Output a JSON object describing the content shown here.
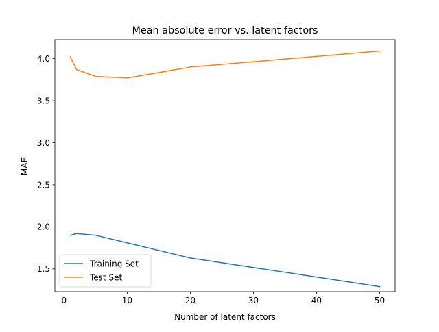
{
  "chart_data": {
    "type": "line",
    "title": "Mean absolute error vs. latent factors",
    "xlabel": "Number of latent factors",
    "ylabel": "MAE",
    "x": [
      1,
      2,
      5,
      10,
      20,
      50
    ],
    "series": [
      {
        "name": "Training Set",
        "color": "#1f77b4",
        "values": [
          1.9,
          1.92,
          1.9,
          1.81,
          1.63,
          1.29
        ]
      },
      {
        "name": "Test Set",
        "color": "#ff7f0e",
        "values": [
          4.02,
          3.87,
          3.79,
          3.77,
          3.9,
          4.09
        ]
      }
    ],
    "xlim": [
      -1.45,
      52.45
    ],
    "ylim": [
      1.23,
      4.225
    ],
    "xticks": [
      0,
      10,
      20,
      30,
      40,
      50
    ],
    "xtick_labels": [
      "0",
      "10",
      "20",
      "30",
      "40",
      "50"
    ],
    "yticks": [
      1.5,
      2.0,
      2.5,
      3.0,
      3.5,
      4.0
    ],
    "ytick_labels": [
      "1.5",
      "2.0",
      "2.5",
      "3.0",
      "3.5",
      "4.0"
    ],
    "grid": false,
    "legend_position": "lower-left"
  }
}
